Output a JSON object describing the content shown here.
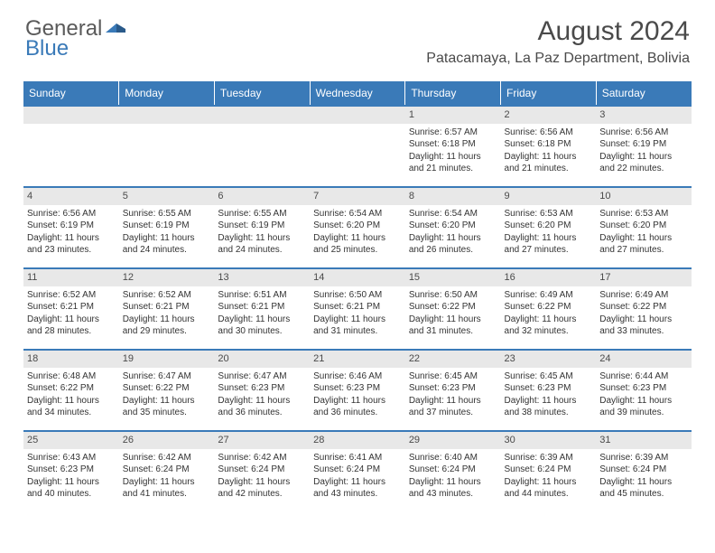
{
  "logo": {
    "general": "General",
    "blue": "Blue"
  },
  "title": "August 2024",
  "location": "Patacamaya, La Paz Department, Bolivia",
  "header_bg": "#3a7ab8",
  "weekdays": [
    "Sunday",
    "Monday",
    "Tuesday",
    "Wednesday",
    "Thursday",
    "Friday",
    "Saturday"
  ],
  "rows": [
    [
      {
        "empty": true
      },
      {
        "empty": true
      },
      {
        "empty": true
      },
      {
        "empty": true
      },
      {
        "day": "1",
        "sunrise": "Sunrise: 6:57 AM",
        "sunset": "Sunset: 6:18 PM",
        "daylight1": "Daylight: 11 hours",
        "daylight2": "and 21 minutes."
      },
      {
        "day": "2",
        "sunrise": "Sunrise: 6:56 AM",
        "sunset": "Sunset: 6:18 PM",
        "daylight1": "Daylight: 11 hours",
        "daylight2": "and 21 minutes."
      },
      {
        "day": "3",
        "sunrise": "Sunrise: 6:56 AM",
        "sunset": "Sunset: 6:19 PM",
        "daylight1": "Daylight: 11 hours",
        "daylight2": "and 22 minutes."
      }
    ],
    [
      {
        "day": "4",
        "sunrise": "Sunrise: 6:56 AM",
        "sunset": "Sunset: 6:19 PM",
        "daylight1": "Daylight: 11 hours",
        "daylight2": "and 23 minutes."
      },
      {
        "day": "5",
        "sunrise": "Sunrise: 6:55 AM",
        "sunset": "Sunset: 6:19 PM",
        "daylight1": "Daylight: 11 hours",
        "daylight2": "and 24 minutes."
      },
      {
        "day": "6",
        "sunrise": "Sunrise: 6:55 AM",
        "sunset": "Sunset: 6:19 PM",
        "daylight1": "Daylight: 11 hours",
        "daylight2": "and 24 minutes."
      },
      {
        "day": "7",
        "sunrise": "Sunrise: 6:54 AM",
        "sunset": "Sunset: 6:20 PM",
        "daylight1": "Daylight: 11 hours",
        "daylight2": "and 25 minutes."
      },
      {
        "day": "8",
        "sunrise": "Sunrise: 6:54 AM",
        "sunset": "Sunset: 6:20 PM",
        "daylight1": "Daylight: 11 hours",
        "daylight2": "and 26 minutes."
      },
      {
        "day": "9",
        "sunrise": "Sunrise: 6:53 AM",
        "sunset": "Sunset: 6:20 PM",
        "daylight1": "Daylight: 11 hours",
        "daylight2": "and 27 minutes."
      },
      {
        "day": "10",
        "sunrise": "Sunrise: 6:53 AM",
        "sunset": "Sunset: 6:20 PM",
        "daylight1": "Daylight: 11 hours",
        "daylight2": "and 27 minutes."
      }
    ],
    [
      {
        "day": "11",
        "sunrise": "Sunrise: 6:52 AM",
        "sunset": "Sunset: 6:21 PM",
        "daylight1": "Daylight: 11 hours",
        "daylight2": "and 28 minutes."
      },
      {
        "day": "12",
        "sunrise": "Sunrise: 6:52 AM",
        "sunset": "Sunset: 6:21 PM",
        "daylight1": "Daylight: 11 hours",
        "daylight2": "and 29 minutes."
      },
      {
        "day": "13",
        "sunrise": "Sunrise: 6:51 AM",
        "sunset": "Sunset: 6:21 PM",
        "daylight1": "Daylight: 11 hours",
        "daylight2": "and 30 minutes."
      },
      {
        "day": "14",
        "sunrise": "Sunrise: 6:50 AM",
        "sunset": "Sunset: 6:21 PM",
        "daylight1": "Daylight: 11 hours",
        "daylight2": "and 31 minutes."
      },
      {
        "day": "15",
        "sunrise": "Sunrise: 6:50 AM",
        "sunset": "Sunset: 6:22 PM",
        "daylight1": "Daylight: 11 hours",
        "daylight2": "and 31 minutes."
      },
      {
        "day": "16",
        "sunrise": "Sunrise: 6:49 AM",
        "sunset": "Sunset: 6:22 PM",
        "daylight1": "Daylight: 11 hours",
        "daylight2": "and 32 minutes."
      },
      {
        "day": "17",
        "sunrise": "Sunrise: 6:49 AM",
        "sunset": "Sunset: 6:22 PM",
        "daylight1": "Daylight: 11 hours",
        "daylight2": "and 33 minutes."
      }
    ],
    [
      {
        "day": "18",
        "sunrise": "Sunrise: 6:48 AM",
        "sunset": "Sunset: 6:22 PM",
        "daylight1": "Daylight: 11 hours",
        "daylight2": "and 34 minutes."
      },
      {
        "day": "19",
        "sunrise": "Sunrise: 6:47 AM",
        "sunset": "Sunset: 6:22 PM",
        "daylight1": "Daylight: 11 hours",
        "daylight2": "and 35 minutes."
      },
      {
        "day": "20",
        "sunrise": "Sunrise: 6:47 AM",
        "sunset": "Sunset: 6:23 PM",
        "daylight1": "Daylight: 11 hours",
        "daylight2": "and 36 minutes."
      },
      {
        "day": "21",
        "sunrise": "Sunrise: 6:46 AM",
        "sunset": "Sunset: 6:23 PM",
        "daylight1": "Daylight: 11 hours",
        "daylight2": "and 36 minutes."
      },
      {
        "day": "22",
        "sunrise": "Sunrise: 6:45 AM",
        "sunset": "Sunset: 6:23 PM",
        "daylight1": "Daylight: 11 hours",
        "daylight2": "and 37 minutes."
      },
      {
        "day": "23",
        "sunrise": "Sunrise: 6:45 AM",
        "sunset": "Sunset: 6:23 PM",
        "daylight1": "Daylight: 11 hours",
        "daylight2": "and 38 minutes."
      },
      {
        "day": "24",
        "sunrise": "Sunrise: 6:44 AM",
        "sunset": "Sunset: 6:23 PM",
        "daylight1": "Daylight: 11 hours",
        "daylight2": "and 39 minutes."
      }
    ],
    [
      {
        "day": "25",
        "sunrise": "Sunrise: 6:43 AM",
        "sunset": "Sunset: 6:23 PM",
        "daylight1": "Daylight: 11 hours",
        "daylight2": "and 40 minutes."
      },
      {
        "day": "26",
        "sunrise": "Sunrise: 6:42 AM",
        "sunset": "Sunset: 6:24 PM",
        "daylight1": "Daylight: 11 hours",
        "daylight2": "and 41 minutes."
      },
      {
        "day": "27",
        "sunrise": "Sunrise: 6:42 AM",
        "sunset": "Sunset: 6:24 PM",
        "daylight1": "Daylight: 11 hours",
        "daylight2": "and 42 minutes."
      },
      {
        "day": "28",
        "sunrise": "Sunrise: 6:41 AM",
        "sunset": "Sunset: 6:24 PM",
        "daylight1": "Daylight: 11 hours",
        "daylight2": "and 43 minutes."
      },
      {
        "day": "29",
        "sunrise": "Sunrise: 6:40 AM",
        "sunset": "Sunset: 6:24 PM",
        "daylight1": "Daylight: 11 hours",
        "daylight2": "and 43 minutes."
      },
      {
        "day": "30",
        "sunrise": "Sunrise: 6:39 AM",
        "sunset": "Sunset: 6:24 PM",
        "daylight1": "Daylight: 11 hours",
        "daylight2": "and 44 minutes."
      },
      {
        "day": "31",
        "sunrise": "Sunrise: 6:39 AM",
        "sunset": "Sunset: 6:24 PM",
        "daylight1": "Daylight: 11 hours",
        "daylight2": "and 45 minutes."
      }
    ]
  ]
}
